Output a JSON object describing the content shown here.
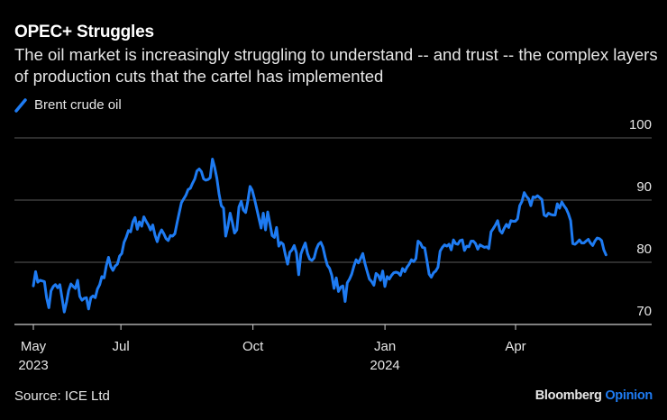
{
  "header": {
    "title": "OPEC+ Struggles",
    "subtitle": "The oil market is increasingly struggling to understand -- and trust -- the complex layers of production cuts that the cartel has implemented"
  },
  "footer": {
    "source": "Source: ICE Ltd",
    "brand_main": "Bloomberg",
    "brand_sub": "Opinion"
  },
  "colors": {
    "background": "#000000",
    "line": "#1e7bf2",
    "grid": "#5a5a5a",
    "axis": "#cccccc",
    "brand_accent": "#1e7bf2"
  },
  "chart_data": {
    "type": "line",
    "title": "OPEC+ Struggles",
    "xlabel": "",
    "ylabel": "",
    "ylim": [
      70,
      100
    ],
    "yticks": [
      70,
      80,
      90,
      100
    ],
    "ytick_labels": [
      "70",
      "80",
      "90",
      "100"
    ],
    "y_axis_side": "right",
    "grid": true,
    "legend": "top-left",
    "x_start": "2023-05-01",
    "x_end": "2024-06-03",
    "xticks": [
      {
        "date": "2023-05-01",
        "label": "May",
        "sublabel": "2023"
      },
      {
        "date": "2023-07-01",
        "label": "Jul",
        "sublabel": ""
      },
      {
        "date": "2023-10-01",
        "label": "Oct",
        "sublabel": ""
      },
      {
        "date": "2024-01-01",
        "label": "Jan",
        "sublabel": "2024"
      },
      {
        "date": "2024-04-01",
        "label": "Apr",
        "sublabel": ""
      }
    ],
    "series": [
      {
        "name": "Brent crude oil",
        "values": [
          76.2,
          78.5,
          76.8,
          77.1,
          77.0,
          76.9,
          74.3,
          72.7,
          75.4,
          76.1,
          76.4,
          75.9,
          76.4,
          74.2,
          72.0,
          73.6,
          75.5,
          76.5,
          76.1,
          75.8,
          77.1,
          74.5,
          73.9,
          74.2,
          74.3,
          72.5,
          74.3,
          74.6,
          74.3,
          75.7,
          76.4,
          77.7,
          77.5,
          79.4,
          80.8,
          79.3,
          78.7,
          79.4,
          79.7,
          81.0,
          81.4,
          83.2,
          84.0,
          85.1,
          84.9,
          86.5,
          87.2,
          85.3,
          86.5,
          85.8,
          87.3,
          86.6,
          86.0,
          85.2,
          86.0,
          84.4,
          83.3,
          84.5,
          85.2,
          84.6,
          83.8,
          83.5,
          84.3,
          84.2,
          84.6,
          86.3,
          88.0,
          89.6,
          90.2,
          90.8,
          91.7,
          91.9,
          92.7,
          93.4,
          94.7,
          95.0,
          94.6,
          93.4,
          93.2,
          93.3,
          93.6,
          96.6,
          95.3,
          93.5,
          91.0,
          89.1,
          88.7,
          84.2,
          85.8,
          87.9,
          86.4,
          84.7,
          85.2,
          88.9,
          89.8,
          88.4,
          88.0,
          89.8,
          92.2,
          91.6,
          90.2,
          88.7,
          87.1,
          85.5,
          87.9,
          85.2,
          88.1,
          86.2,
          84.3,
          84.0,
          85.6,
          82.6,
          83.2,
          82.9,
          81.2,
          79.7,
          81.6,
          82.0,
          82.7,
          81.5,
          78.0,
          81.3,
          82.3,
          83.1,
          81.4,
          80.5,
          80.3,
          80.7,
          82.1,
          82.9,
          83.2,
          82.4,
          80.8,
          79.5,
          79.0,
          77.9,
          75.8,
          77.5,
          75.3,
          76.0,
          76.2,
          73.7,
          76.7,
          77.3,
          78.1,
          79.4,
          80.4,
          79.9,
          80.6,
          81.4,
          79.8,
          78.5,
          77.3,
          76.9,
          76.3,
          78.2,
          77.9,
          77.1,
          78.6,
          76.1,
          77.7,
          77.3,
          77.9,
          78.3,
          78.4,
          78.3,
          77.9,
          79.0,
          78.5,
          79.2,
          79.7,
          80.4,
          80.1,
          80.6,
          83.4,
          83.1,
          82.4,
          82.3,
          80.3,
          78.1,
          77.6,
          78.3,
          78.6,
          79.2,
          81.8,
          82.4,
          82.8,
          82.6,
          82.9,
          82.0,
          83.6,
          83.0,
          82.9,
          83.5,
          83.6,
          81.9,
          82.6,
          82.5,
          83.4,
          83.4,
          83.0,
          82.1,
          82.8,
          82.6,
          82.4,
          82.5,
          82.2,
          84.9,
          85.4,
          86.0,
          86.7,
          85.1,
          84.7,
          85.5,
          86.1,
          85.6,
          86.7,
          86.6,
          86.6,
          87.0,
          89.1,
          89.8,
          91.2,
          90.6,
          90.2,
          89.1,
          90.5,
          90.4,
          90.7,
          90.4,
          90.1,
          87.6,
          87.4,
          87.9,
          87.7,
          87.6,
          87.6,
          89.4,
          88.7,
          89.7,
          89.1,
          88.6,
          87.8,
          86.7,
          83.0,
          82.9,
          83.2,
          83.6,
          83.1,
          83.1,
          83.4,
          83.7,
          83.1,
          82.7,
          83.4,
          83.9,
          83.8,
          83.5,
          82.0,
          81.2
        ]
      }
    ]
  }
}
